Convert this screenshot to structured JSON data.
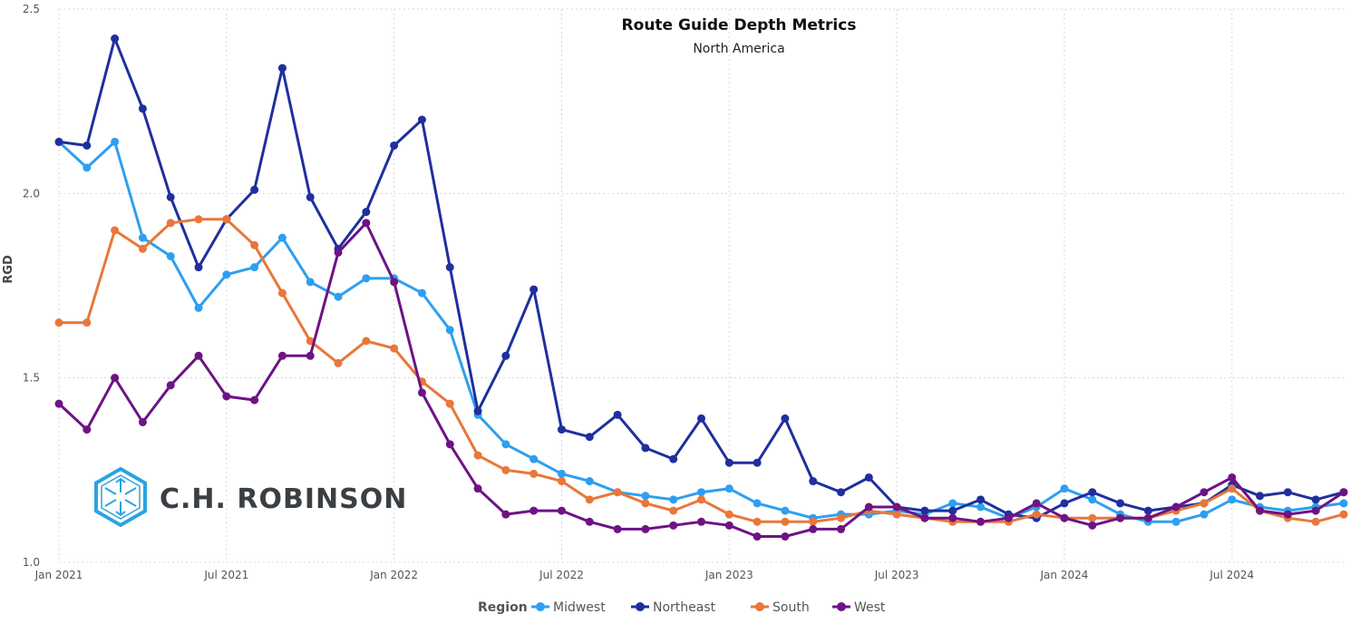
{
  "colors": {
    "Midwest": "#2e9ff0",
    "Northeast": "#1f2f9e",
    "South": "#e8773a",
    "West": "#6e1385",
    "logo": "#2aa3e0"
  },
  "logo": {
    "text": "C.H. ROBINSON",
    "icon": "cube-logo-icon"
  },
  "chart_data": {
    "type": "line",
    "title": "Route Guide Depth Metrics",
    "subtitle": "North America",
    "ylabel": "RGD",
    "ylim": [
      1.0,
      2.5
    ],
    "yticks": [
      "1.0",
      "1.5",
      "2.0",
      "2.5"
    ],
    "xticks": [
      "Jan 2021",
      "Jul 2021",
      "Jan 2022",
      "Jul 2022",
      "Jan 2023",
      "Jul 2023",
      "Jan 2024",
      "Jul 2024"
    ],
    "x": [
      "2021-01",
      "2021-02",
      "2021-03",
      "2021-04",
      "2021-05",
      "2021-06",
      "2021-07",
      "2021-08",
      "2021-09",
      "2021-10",
      "2021-11",
      "2021-12",
      "2022-01",
      "2022-02",
      "2022-03",
      "2022-04",
      "2022-05",
      "2022-06",
      "2022-07",
      "2022-08",
      "2022-09",
      "2022-10",
      "2022-11",
      "2022-12",
      "2023-01",
      "2023-02",
      "2023-03",
      "2023-04",
      "2023-05",
      "2023-06",
      "2023-07",
      "2023-08",
      "2023-09",
      "2023-10",
      "2023-11",
      "2023-12",
      "2024-01",
      "2024-02",
      "2024-03",
      "2024-04",
      "2024-05",
      "2024-06",
      "2024-07",
      "2024-08",
      "2024-09",
      "2024-10",
      "2024-11"
    ],
    "legend_title": "Region",
    "legend_position": "bottom",
    "grid": true,
    "series": [
      {
        "name": "Midwest",
        "values": [
          2.14,
          2.07,
          2.14,
          1.88,
          1.83,
          1.69,
          1.78,
          1.8,
          1.88,
          1.76,
          1.72,
          1.77,
          1.77,
          1.73,
          1.63,
          1.4,
          1.32,
          1.28,
          1.24,
          1.22,
          1.19,
          1.18,
          1.17,
          1.19,
          1.2,
          1.16,
          1.14,
          1.12,
          1.13,
          1.13,
          1.14,
          1.13,
          1.16,
          1.15,
          1.12,
          1.15,
          1.2,
          1.17,
          1.13,
          1.11,
          1.11,
          1.13,
          1.17,
          1.15,
          1.14,
          1.15,
          1.16
        ]
      },
      {
        "name": "Northeast",
        "values": [
          2.14,
          2.13,
          2.42,
          2.23,
          1.99,
          1.8,
          1.93,
          2.01,
          2.34,
          1.99,
          1.85,
          1.95,
          2.13,
          2.2,
          1.8,
          1.41,
          1.56,
          1.74,
          1.36,
          1.34,
          1.4,
          1.31,
          1.28,
          1.39,
          1.27,
          1.27,
          1.39,
          1.22,
          1.19,
          1.23,
          1.15,
          1.14,
          1.14,
          1.17,
          1.13,
          1.12,
          1.16,
          1.19,
          1.16,
          1.14,
          1.15,
          1.16,
          1.21,
          1.18,
          1.19,
          1.17,
          1.19
        ]
      },
      {
        "name": "South",
        "values": [
          1.65,
          1.65,
          1.9,
          1.85,
          1.92,
          1.93,
          1.93,
          1.86,
          1.73,
          1.6,
          1.54,
          1.6,
          1.58,
          1.49,
          1.43,
          1.29,
          1.25,
          1.24,
          1.22,
          1.17,
          1.19,
          1.16,
          1.14,
          1.17,
          1.13,
          1.11,
          1.11,
          1.11,
          1.12,
          1.14,
          1.13,
          1.12,
          1.11,
          1.11,
          1.11,
          1.13,
          1.12,
          1.12,
          1.12,
          1.12,
          1.14,
          1.16,
          1.2,
          1.14,
          1.12,
          1.11,
          1.13
        ]
      },
      {
        "name": "West",
        "values": [
          1.43,
          1.36,
          1.5,
          1.38,
          1.48,
          1.56,
          1.45,
          1.44,
          1.56,
          1.56,
          1.84,
          1.92,
          1.76,
          1.46,
          1.32,
          1.2,
          1.13,
          1.14,
          1.14,
          1.11,
          1.09,
          1.09,
          1.1,
          1.11,
          1.1,
          1.07,
          1.07,
          1.09,
          1.09,
          1.15,
          1.15,
          1.12,
          1.12,
          1.11,
          1.12,
          1.16,
          1.12,
          1.1,
          1.12,
          1.12,
          1.15,
          1.19,
          1.23,
          1.14,
          1.13,
          1.14,
          1.19
        ]
      }
    ]
  }
}
